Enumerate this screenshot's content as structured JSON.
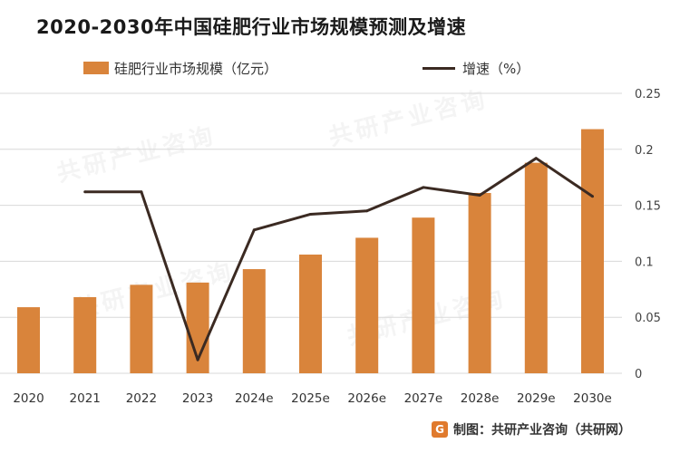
{
  "title": "2020-2030年中国硅肥行业市场规模预测及增速",
  "source": {
    "label": "制图：共研产业咨询（共研网）",
    "logo_char": "G",
    "watermark_text": "共研产业咨询"
  },
  "colors": {
    "bar": "#d9843b",
    "line": "#3b2a22",
    "grid": "#d8d8d8"
  },
  "chart_data": {
    "type": "bar",
    "title": "2020-2030年中国硅肥行业市场规模预测及增速",
    "categories": [
      "2020",
      "2021",
      "2022",
      "2023",
      "2024e",
      "2025e",
      "2026e",
      "2027e",
      "2028e",
      "2029e",
      "2030e"
    ],
    "series": [
      {
        "name": "硅肥行业市场规模（亿元）",
        "type": "bar",
        "axis": "left",
        "values": [
          0.059,
          0.068,
          0.079,
          0.081,
          0.093,
          0.106,
          0.121,
          0.139,
          0.161,
          0.188,
          0.218
        ]
      },
      {
        "name": "增速（%）",
        "type": "line",
        "axis": "right",
        "values": [
          null,
          0.162,
          0.162,
          0.012,
          0.128,
          0.142,
          0.145,
          0.166,
          0.159,
          0.192,
          0.158
        ]
      }
    ],
    "left_ylim": [
      0,
      0.25
    ],
    "right_ylim": [
      0,
      0.25
    ],
    "right_ticks": [
      "0",
      "0.05",
      "0.1",
      "0.15",
      "0.2",
      "0.25"
    ],
    "legend_position": "top",
    "grid": true
  }
}
